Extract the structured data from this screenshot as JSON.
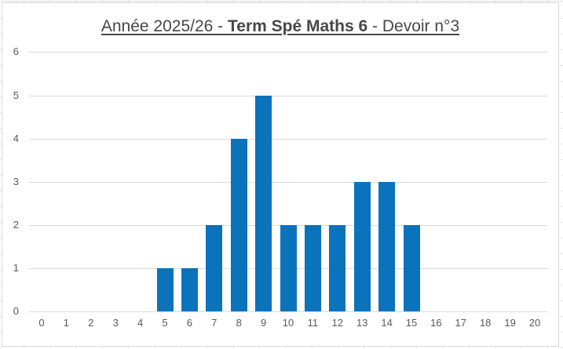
{
  "chart_data": {
    "type": "bar",
    "title": "Année 2025/26 - Term Spé Maths 6 - Devoir n°3",
    "title_parts": {
      "prefix": "Année 2025/26 - ",
      "bold": "Term Spé Maths 6",
      "suffix": " - Devoir n°3"
    },
    "categories": [
      0,
      1,
      2,
      3,
      4,
      5,
      6,
      7,
      8,
      9,
      10,
      11,
      12,
      13,
      14,
      15,
      16,
      17,
      18,
      19,
      20
    ],
    "values": [
      0,
      0,
      0,
      0,
      0,
      1,
      1,
      2,
      4,
      5,
      2,
      2,
      2,
      3,
      3,
      2,
      0,
      0,
      0,
      0,
      0
    ],
    "xlabel": "",
    "ylabel": "",
    "ylim": [
      0,
      6
    ],
    "yticks": [
      0,
      1,
      2,
      3,
      4,
      5,
      6
    ],
    "grid": "horizontal",
    "legend": "none",
    "colors": {
      "bar": "#0B72BC",
      "gridline": "#D9D9D9",
      "chart_border": "#D9D9D9",
      "sheet_gridline": "#DCDCDC",
      "tick_label": "#595959",
      "title": "#474747",
      "background": "#FFFFFF"
    }
  }
}
